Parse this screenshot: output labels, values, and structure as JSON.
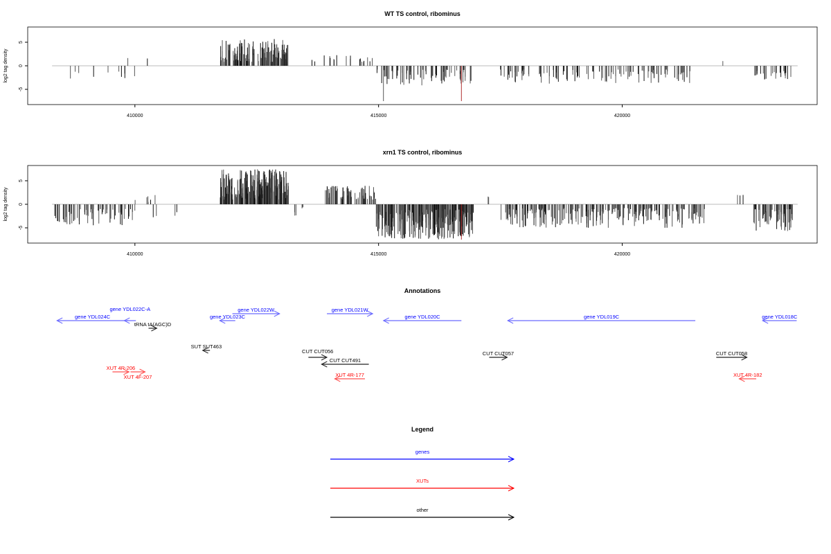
{
  "chart_data": [
    {
      "type": "bar",
      "title": "WT TS control, ribominus",
      "ylabel": "log2 tag density",
      "xlim": [
        407800,
        424000
      ],
      "ylim": [
        -8.3,
        8.3
      ],
      "xticks": [
        410000,
        415000,
        420000
      ],
      "yticks": [
        -5,
        0,
        5
      ],
      "regions": [
        {
          "start": 408400,
          "end": 410000,
          "count": 10,
          "min": 1,
          "max": 3,
          "sign": -1
        },
        {
          "start": 409600,
          "end": 410400,
          "count": 2,
          "min": 1.5,
          "max": 2,
          "sign": 1
        },
        {
          "start": 411750,
          "end": 413150,
          "count": 150,
          "min": 0.8,
          "max": 5.7,
          "sign": 1
        },
        {
          "start": 413600,
          "end": 414900,
          "count": 22,
          "min": 0.8,
          "max": 2.5,
          "sign": 1
        },
        {
          "start": 414950,
          "end": 416900,
          "count": 70,
          "min": 0.8,
          "max": 4.2,
          "sign": -1
        },
        {
          "start": 417500,
          "end": 421500,
          "count": 110,
          "min": 0.8,
          "max": 3.8,
          "sign": -1
        },
        {
          "start": 422050,
          "end": 422100,
          "count": 1,
          "min": 1,
          "max": 1,
          "sign": 1
        },
        {
          "start": 422700,
          "end": 423500,
          "count": 25,
          "min": 1,
          "max": 3,
          "sign": -1
        }
      ],
      "highlights": [
        {
          "x": 415100,
          "y": -7.5,
          "color": "#555555"
        },
        {
          "x": 416700,
          "y": -7.5,
          "color": "#b03030"
        }
      ]
    },
    {
      "type": "bar",
      "title": "xrn1 TS control, ribominus",
      "ylabel": "log2 tag density",
      "xlim": [
        407800,
        424000
      ],
      "ylim": [
        -8.3,
        8.3
      ],
      "xticks": [
        410000,
        415000,
        420000
      ],
      "yticks": [
        -5,
        0,
        5
      ],
      "regions": [
        {
          "start": 408350,
          "end": 410000,
          "count": 70,
          "min": 1,
          "max": 4.5,
          "sign": -1
        },
        {
          "start": 409500,
          "end": 410600,
          "count": 6,
          "min": 0.5,
          "max": 2.2,
          "sign": 1
        },
        {
          "start": 410200,
          "end": 411000,
          "count": 4,
          "min": 1,
          "max": 3,
          "sign": -1
        },
        {
          "start": 411750,
          "end": 413150,
          "count": 250,
          "min": 1,
          "max": 7.5,
          "sign": 1
        },
        {
          "start": 413200,
          "end": 413900,
          "count": 5,
          "min": 0.5,
          "max": 2.8,
          "sign": -1
        },
        {
          "start": 413900,
          "end": 414950,
          "count": 70,
          "min": 1,
          "max": 4,
          "sign": 1
        },
        {
          "start": 414950,
          "end": 416950,
          "count": 260,
          "min": 1,
          "max": 7.5,
          "sign": -1
        },
        {
          "start": 417200,
          "end": 417300,
          "count": 2,
          "min": 1.5,
          "max": 2,
          "sign": 1
        },
        {
          "start": 417500,
          "end": 421700,
          "count": 240,
          "min": 0.8,
          "max": 5,
          "sign": -1
        },
        {
          "start": 422000,
          "end": 422600,
          "count": 3,
          "min": 0.8,
          "max": 2,
          "sign": 1
        },
        {
          "start": 422700,
          "end": 423500,
          "count": 60,
          "min": 1,
          "max": 6,
          "sign": -1
        }
      ],
      "highlights": [
        {
          "x": 416700,
          "y": -7.5,
          "color": "#b03030"
        }
      ]
    },
    {
      "type": "annotation-track",
      "title": "Annotations",
      "features": [
        {
          "label": "gene YDL024C",
          "start": 408400,
          "end": 409860,
          "strand": "-",
          "class": "genes"
        },
        {
          "label": "gene YDL022C-A",
          "start": 409780,
          "end": 410020,
          "strand": "-",
          "class": "genes"
        },
        {
          "label": "tRNA tA(AGC)D",
          "start": 410280,
          "end": 410450,
          "strand": "+",
          "class": "other"
        },
        {
          "label": "gene YDL023C",
          "start": 411740,
          "end": 412060,
          "strand": "-",
          "class": "genes"
        },
        {
          "label": "gene YDL022W",
          "start": 412000,
          "end": 412970,
          "strand": "+",
          "class": "genes"
        },
        {
          "label": "gene YDL021W",
          "start": 413940,
          "end": 414880,
          "strand": "+",
          "class": "genes"
        },
        {
          "label": "gene YDL020C",
          "start": 415100,
          "end": 416700,
          "strand": "-",
          "class": "genes"
        },
        {
          "label": "gene YDL019C",
          "start": 417650,
          "end": 421500,
          "strand": "-",
          "class": "genes"
        },
        {
          "label": "gene YDL018C",
          "start": 422880,
          "end": 423580,
          "strand": "-",
          "class": "genes"
        },
        {
          "label": "SUT SUT463",
          "start": 411390,
          "end": 411540,
          "strand": "-",
          "class": "other"
        },
        {
          "label": "CUT CUT056",
          "start": 413560,
          "end": 413940,
          "strand": "+",
          "class": "other"
        },
        {
          "label": "CUT CUT491",
          "start": 413830,
          "end": 414800,
          "strand": "-",
          "class": "other"
        },
        {
          "label": "CUT CUT057",
          "start": 417270,
          "end": 417640,
          "strand": "+",
          "class": "other"
        },
        {
          "label": "CUT CUT058",
          "start": 421930,
          "end": 422560,
          "strand": "+",
          "class": "other"
        },
        {
          "label": "XUT 4R-206",
          "start": 409540,
          "end": 409880,
          "strand": "+",
          "class": "XUTs"
        },
        {
          "label": "XUT 4F-207",
          "start": 409910,
          "end": 410210,
          "strand": "+",
          "class": "XUTs"
        },
        {
          "label": "XUT 4R-177",
          "start": 414100,
          "end": 414720,
          "strand": "-",
          "class": "XUTs"
        },
        {
          "label": "XUT 4R-182",
          "start": 422400,
          "end": 422750,
          "strand": "-",
          "class": "XUTs"
        }
      ]
    }
  ],
  "legend": {
    "title": "Legend",
    "items": [
      {
        "label": "genes",
        "color": "#0000ff"
      },
      {
        "label": "XUTs",
        "color": "#ff0000"
      },
      {
        "label": "other",
        "color": "#000000"
      }
    ]
  }
}
